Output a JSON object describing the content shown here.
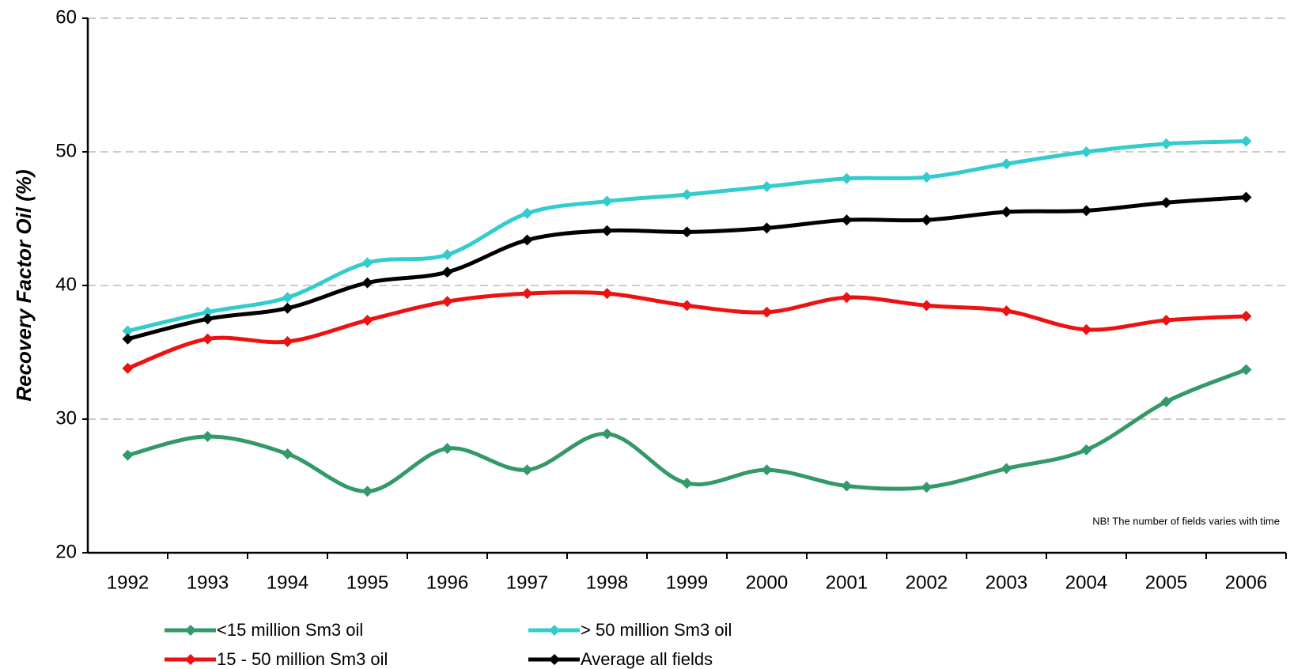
{
  "chart_data": {
    "type": "line",
    "y_label": "Recovery Factor Oil (%)",
    "annotation": "NB! The number of fields varies with time",
    "categories": [
      "1992",
      "1993",
      "1994",
      "1995",
      "1996",
      "1997",
      "1998",
      "1999",
      "2000",
      "2001",
      "2002",
      "2003",
      "2004",
      "2005",
      "2006"
    ],
    "series": [
      {
        "name": "<15 million Sm3 oil",
        "color": "#339966",
        "values": [
          27.3,
          28.7,
          27.4,
          24.6,
          27.8,
          26.2,
          28.9,
          25.2,
          26.2,
          25.0,
          24.9,
          26.3,
          27.7,
          31.3,
          33.7
        ]
      },
      {
        "name": "> 50 million Sm3 oil",
        "color": "#33cccc",
        "values": [
          36.6,
          38.0,
          39.1,
          41.7,
          42.3,
          45.4,
          46.3,
          46.8,
          47.4,
          48.0,
          48.1,
          49.1,
          50.0,
          50.6,
          50.8
        ]
      },
      {
        "name": "15 - 50 million Sm3 oil",
        "color": "#ee1111",
        "values": [
          33.8,
          36.0,
          35.8,
          37.4,
          38.8,
          39.4,
          39.4,
          38.5,
          38.0,
          39.1,
          38.5,
          38.1,
          36.7,
          37.4,
          37.7
        ]
      },
      {
        "name": "Average all fields",
        "color": "#000000",
        "values": [
          36.0,
          37.5,
          38.3,
          40.2,
          41.0,
          43.4,
          44.1,
          44.0,
          44.3,
          44.9,
          44.9,
          45.5,
          45.6,
          46.2,
          46.6
        ]
      }
    ],
    "ylim": [
      20,
      60
    ],
    "yticks": [
      20,
      30,
      40,
      50,
      60
    ],
    "grid": true
  }
}
